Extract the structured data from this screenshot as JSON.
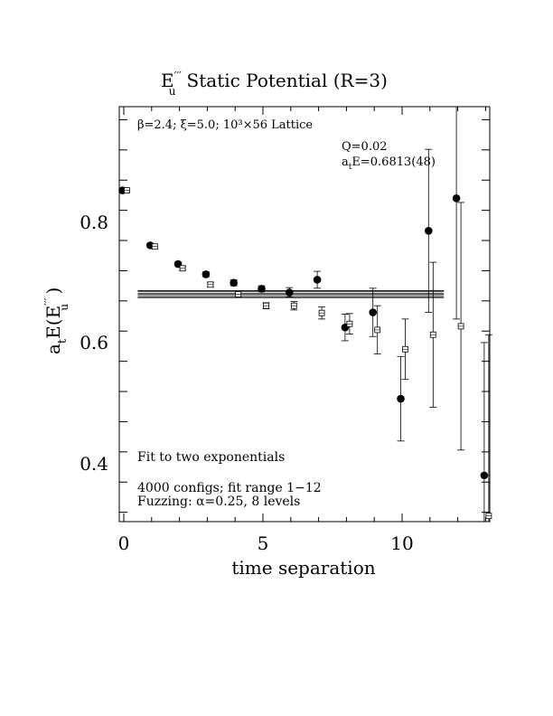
{
  "chart_data": {
    "type": "scatter",
    "title": "E′′′u  Static Potential (R=3)",
    "title_parts": {
      "symbol": "E",
      "prime": "′′′",
      "sub": "u",
      "text": "Static Potential (R=3)"
    },
    "xlabel": "time separation",
    "ylabel_parts": {
      "a": "a",
      "t": "t",
      "E": "E(E",
      "prime": "′′′",
      "u": "u",
      "close": " )"
    },
    "xlim": [
      0,
      13
    ],
    "ylim": [
      0.3,
      0.99
    ],
    "x_ticks": [
      0,
      5,
      10
    ],
    "x_tick_labels": [
      "0",
      "5",
      "10"
    ],
    "y_ticks": [
      0.4,
      0.6,
      0.8
    ],
    "y_tick_labels": [
      "0.4",
      "0.6",
      "0.8"
    ],
    "annotations": {
      "lattice": "β=2.4; ξ=5.0; 10³×56 Lattice",
      "q": "Q=0.02",
      "energy_prefix": "a",
      "energy_sub": "t",
      "energy_rest": "E=0.6813(48)",
      "fit_type": "Fit to two exponentials",
      "configs": "4000 configs; fit range 1−12",
      "fuzzing": "Fuzzing: α=0.25, 8 levels"
    },
    "fit": {
      "value": 0.6813,
      "error": 0.0048,
      "x_range": [
        0.5,
        11.5
      ]
    },
    "series": [
      {
        "marker": "filled-circle",
        "x": [
          0,
          1,
          2,
          3,
          4,
          5,
          6,
          7,
          8,
          9,
          10,
          11,
          12,
          13
        ],
        "y": [
          0.853,
          0.762,
          0.731,
          0.714,
          0.7,
          0.69,
          0.684,
          0.705,
          0.626,
          0.651,
          0.508,
          0.786,
          0.84,
          0.381
        ],
        "err": [
          0.002,
          0.003,
          0.003,
          0.004,
          0.005,
          0.005,
          0.008,
          0.014,
          0.022,
          0.04,
          0.07,
          0.135,
          0.2,
          0.22
        ]
      },
      {
        "marker": "open-square",
        "x": [
          0,
          1,
          2,
          3,
          4,
          5,
          6,
          7,
          8,
          9,
          10,
          11,
          12,
          13
        ],
        "y": [
          0.853,
          0.76,
          0.724,
          0.697,
          0.681,
          0.662,
          0.662,
          0.65,
          0.632,
          0.622,
          0.59,
          0.614,
          0.628,
          0.314
        ],
        "err": [
          0.002,
          0.002,
          0.003,
          0.004,
          0.004,
          0.005,
          0.007,
          0.01,
          0.017,
          0.04,
          0.05,
          0.12,
          0.205,
          0.3
        ]
      }
    ]
  }
}
